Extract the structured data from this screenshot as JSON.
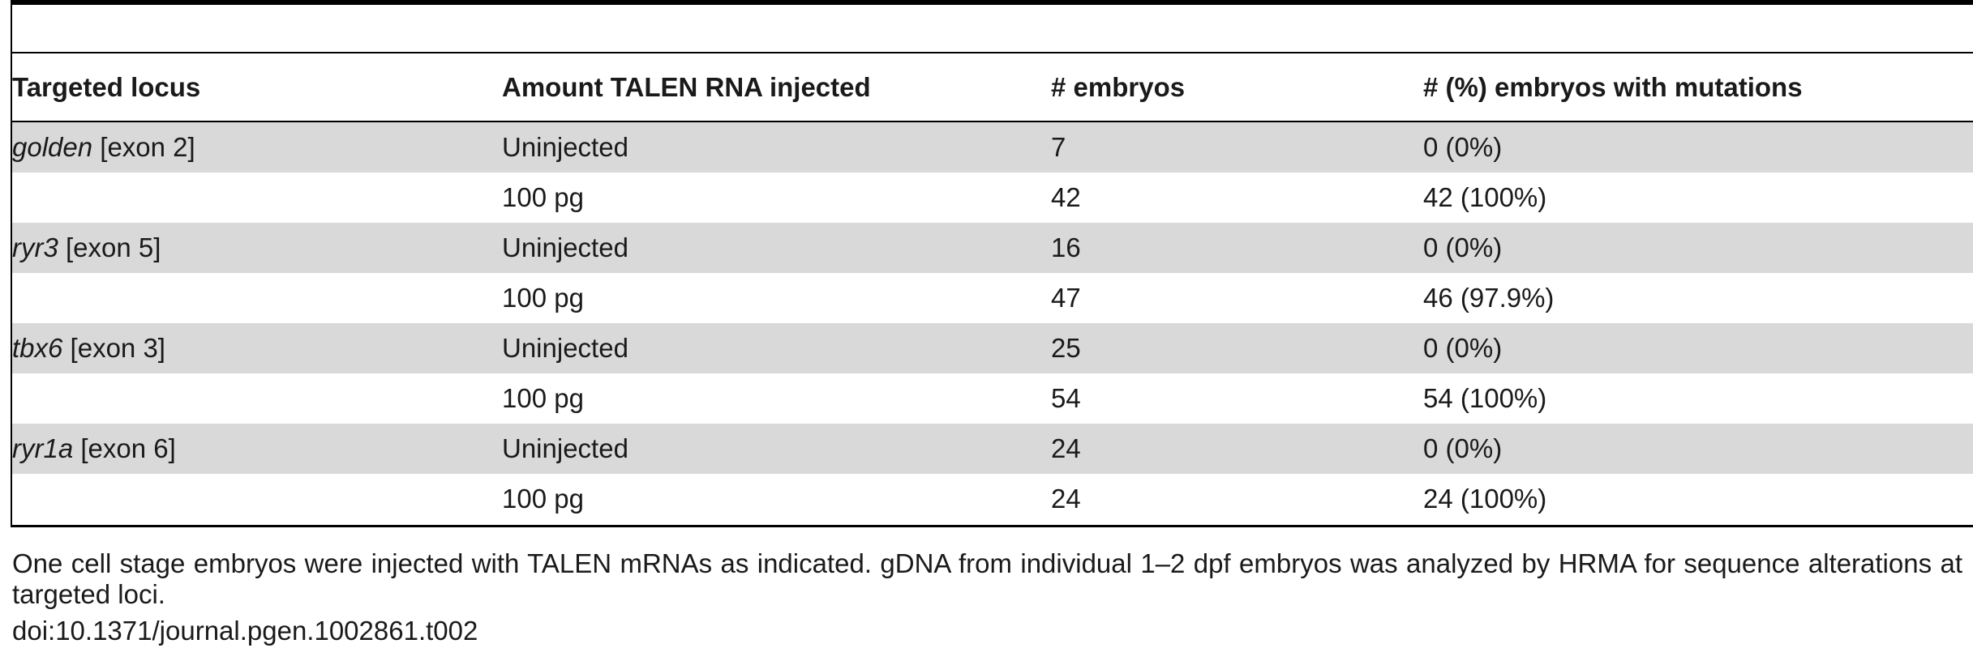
{
  "table": {
    "headers": [
      "Targeted locus",
      "Amount TALEN RNA injected",
      "# embryos",
      "# (%) embryos with mutations"
    ],
    "rows": [
      {
        "gene": "golden",
        "exon": " [exon 2]",
        "amount": "Uninjected",
        "embryos": "7",
        "mutations": "0 (0%)",
        "shaded": true
      },
      {
        "gene": "",
        "exon": "",
        "amount": "100 pg",
        "embryos": "42",
        "mutations": "42 (100%)",
        "shaded": false
      },
      {
        "gene": "ryr3",
        "exon": " [exon 5]",
        "amount": "Uninjected",
        "embryos": "16",
        "mutations": "0 (0%)",
        "shaded": true
      },
      {
        "gene": "",
        "exon": "",
        "amount": "100 pg",
        "embryos": "47",
        "mutations": "46 (97.9%)",
        "shaded": false
      },
      {
        "gene": "tbx6",
        "exon": " [exon 3]",
        "amount": "Uninjected",
        "embryos": "25",
        "mutations": "0 (0%)",
        "shaded": true
      },
      {
        "gene": "",
        "exon": "",
        "amount": "100 pg",
        "embryos": "54",
        "mutations": "54 (100%)",
        "shaded": false
      },
      {
        "gene": "ryr1a",
        "exon": " [exon 6]",
        "amount": "Uninjected",
        "embryos": "24",
        "mutations": "0 (0%)",
        "shaded": true
      },
      {
        "gene": "",
        "exon": "",
        "amount": "100 pg",
        "embryos": "24",
        "mutations": "24 (100%)",
        "shaded": false
      }
    ]
  },
  "footnote": "One cell stage embryos were injected with TALEN mRNAs as indicated. gDNA from individual 1–2 dpf embryos was analyzed by HRMA for sequence alterations at targeted loci.",
  "doi": "doi:10.1371/journal.pgen.1002861.t002",
  "colors": {
    "row_shade": "#d9d9d9",
    "rule": "#000000"
  }
}
